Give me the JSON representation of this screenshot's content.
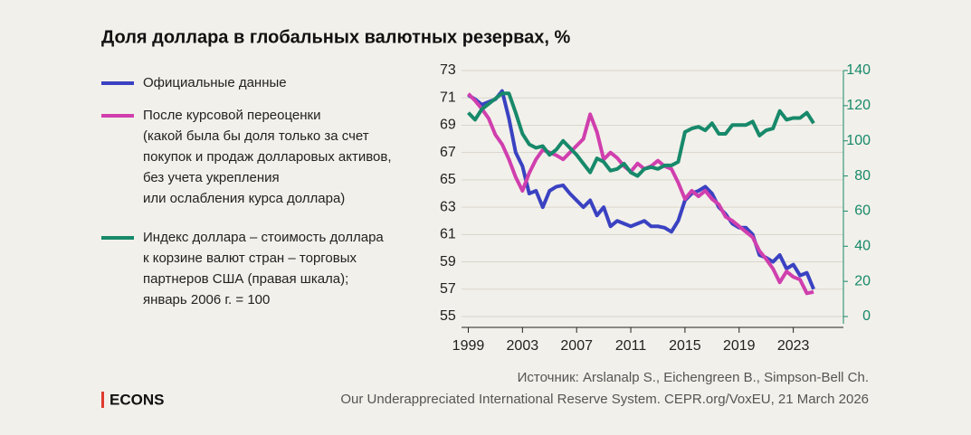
{
  "chart_data": {
    "type": "line",
    "title": "Доля доллара в глобальных валютных резервах, %",
    "x": [
      1999,
      1999.5,
      2000,
      2000.5,
      2001,
      2001.5,
      2002,
      2002.5,
      2003,
      2003.5,
      2004,
      2004.5,
      2005,
      2005.5,
      2006,
      2006.5,
      2007,
      2007.5,
      2008,
      2008.5,
      2009,
      2009.5,
      2010,
      2010.5,
      2011,
      2011.5,
      2012,
      2012.5,
      2013,
      2013.5,
      2014,
      2014.5,
      2015,
      2015.5,
      2016,
      2016.5,
      2017,
      2017.5,
      2018,
      2018.5,
      2019,
      2019.5,
      2020,
      2020.5,
      2021,
      2021.5,
      2022,
      2022.5,
      2023,
      2023.5,
      2024,
      2024.5
    ],
    "xlim": [
      1998.5,
      2026.7
    ],
    "xticks": [
      1999,
      2003,
      2007,
      2011,
      2015,
      2019,
      2023
    ],
    "ylim": [
      55,
      73
    ],
    "yticks": [
      55,
      57,
      59,
      61,
      63,
      65,
      67,
      69,
      71,
      73
    ],
    "y2lim": [
      0,
      140
    ],
    "y2ticks": [
      0,
      20,
      40,
      60,
      80,
      100,
      120,
      140
    ],
    "grid": true,
    "series": [
      {
        "name": "Официальные данные",
        "color": "#3a42c2",
        "values": [
          71.2,
          70.9,
          70.5,
          70.7,
          70.9,
          71.5,
          69.5,
          67.0,
          66.0,
          64.0,
          64.2,
          63.0,
          64.2,
          64.5,
          64.6,
          64.0,
          63.5,
          63.0,
          63.5,
          62.4,
          63.0,
          61.6,
          62.0,
          61.8,
          61.6,
          61.8,
          62.0,
          61.6,
          61.6,
          61.5,
          61.2,
          62.0,
          63.5,
          64.0,
          64.2,
          64.5,
          64.0,
          63.0,
          62.5,
          61.8,
          61.5,
          61.5,
          61.0,
          59.5,
          59.3,
          59.0,
          59.5,
          58.5,
          58.8,
          58.0,
          58.2,
          57.0
        ]
      },
      {
        "name": "После курсовой переоценки\n(какой была бы доля только за счет\nпокупок и продаж долларовых активов,\nбез учета укрепления\nили ослабления курса доллара)",
        "color": "#d03fae",
        "values": [
          71.3,
          70.8,
          70.2,
          69.5,
          68.3,
          67.6,
          66.5,
          65.2,
          64.2,
          65.5,
          66.5,
          67.2,
          67.0,
          66.8,
          66.5,
          67.0,
          67.5,
          68.0,
          69.8,
          68.5,
          66.5,
          67.0,
          66.6,
          66.0,
          65.6,
          66.2,
          65.8,
          66.0,
          66.4,
          66.0,
          65.8,
          64.8,
          63.6,
          64.2,
          63.8,
          64.2,
          63.6,
          63.2,
          62.3,
          62.0,
          61.6,
          61.2,
          60.8,
          59.8,
          59.2,
          58.5,
          57.5,
          58.3,
          57.9,
          57.7,
          56.7,
          56.8
        ]
      },
      {
        "name": "Индекс доллара – стоимость доллара\nк корзине валют стран – торговых\nпартнеров США (правая шкала);\nянварь 2006 г. = 100",
        "color": "#17896a",
        "axis": "y2",
        "values": [
          116,
          112,
          118,
          121,
          124,
          127,
          127,
          116,
          104,
          98,
          96,
          97,
          92,
          95,
          100,
          96,
          92,
          87,
          82,
          90,
          88,
          83,
          84,
          87,
          82,
          80,
          84,
          85,
          84,
          86,
          86,
          88,
          105,
          107,
          108,
          106,
          110,
          104,
          104,
          109,
          109,
          109,
          111,
          103,
          106,
          107,
          117,
          112,
          113,
          113,
          116,
          110
        ]
      }
    ],
    "source": [
      "Источник: Arslanalp S., Eichengreen B., Simpson-Bell Ch.",
      "Our Underappreciated International Reserve System. CEPR.org/VoxEU, 21 March 2026"
    ],
    "logo": "ECONS"
  }
}
